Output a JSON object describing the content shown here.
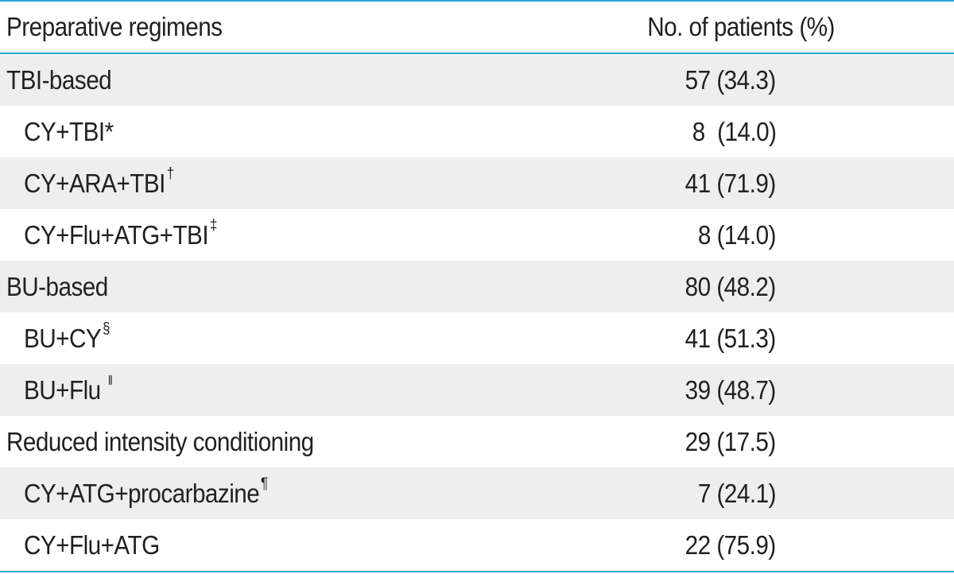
{
  "header": {
    "col1": "Preparative regimens",
    "col2": "No. of patients (%)"
  },
  "rows": [
    {
      "label": "TBI-based",
      "value": "57 (34.3)",
      "mark": ""
    },
    {
      "label": "CY+TBI*",
      "value": "8  (14.0)",
      "mark": ""
    },
    {
      "label": "CY+ARA+TBI",
      "value": "41 (71.9)",
      "mark": "†"
    },
    {
      "label": "CY+Flu+ATG+TBI",
      "value": "8 (14.0)",
      "mark": "‡"
    },
    {
      "label": "BU-based",
      "value": "80 (48.2)",
      "mark": ""
    },
    {
      "label": "BU+CY",
      "value": "41 (51.3)",
      "mark": "§"
    },
    {
      "label": "BU+Flu",
      "value": "39 (48.7)",
      "mark": "ǁ"
    },
    {
      "label": "Reduced intensity conditioning",
      "value": "29 (17.5)",
      "mark": ""
    },
    {
      "label": "CY+ATG+procarbazine",
      "value": "7 (24.1)",
      "mark": "¶"
    },
    {
      "label": "CY+Flu+ATG",
      "value": "22 (75.9)",
      "mark": ""
    }
  ]
}
